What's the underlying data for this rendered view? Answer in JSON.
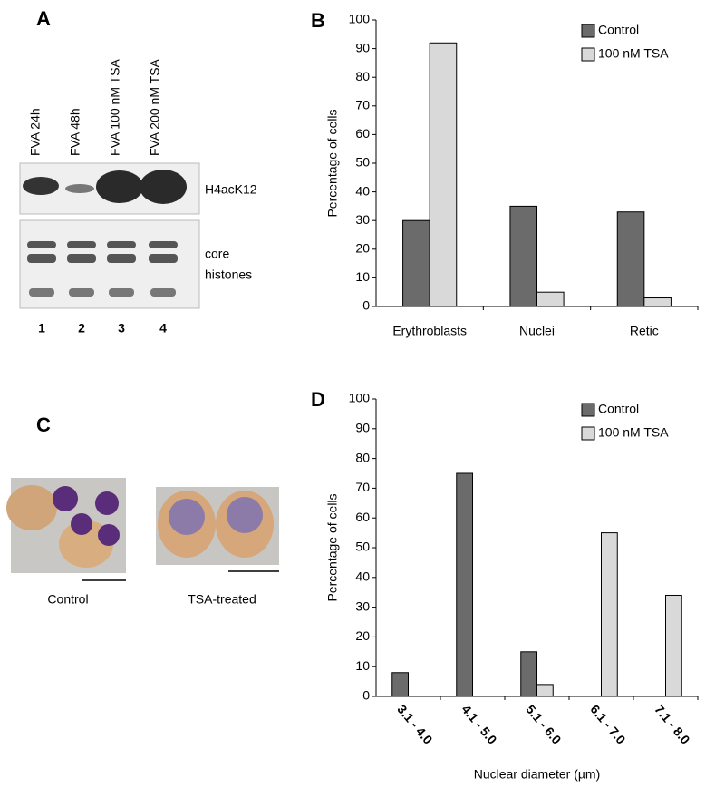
{
  "figure": {
    "panel_a": {
      "letter": "A",
      "lanes": [
        "FVA 24h",
        "FVA 48h",
        "FVA 100 nM TSA",
        "FVA 200 nM TSA"
      ],
      "lane_numbers": [
        "1",
        "2",
        "3",
        "4"
      ],
      "band_labels": [
        "H4acK12",
        "core",
        "histones"
      ]
    },
    "panel_c": {
      "letter": "C",
      "captions": [
        "Control",
        "TSA-treated"
      ]
    }
  },
  "chart_data": [
    {
      "type": "bar",
      "label": "B",
      "ylabel": "Percentage of cells",
      "categories": [
        "Erythroblasts",
        "Nuclei",
        "Retic"
      ],
      "series": [
        {
          "name": "Control",
          "color": "#6b6b6b",
          "values": [
            30,
            35,
            33
          ]
        },
        {
          "name": "100 nM TSA",
          "color": "#d9d9d9",
          "values": [
            92,
            5,
            3
          ]
        }
      ],
      "ylim": [
        0,
        100
      ],
      "yticks": [
        0,
        10,
        20,
        30,
        40,
        50,
        60,
        70,
        80,
        90,
        100
      ],
      "legend": "top-right"
    },
    {
      "type": "bar",
      "label": "D",
      "ylabel": "Percentage of cells",
      "xlabel": "Nuclear diameter (µm)",
      "categories": [
        "3.1 - 4.0",
        "4.1 - 5.0",
        "5.1 - 6.0",
        "6.1 - 7.0",
        "7.1 - 8.0"
      ],
      "series": [
        {
          "name": "Control",
          "color": "#6b6b6b",
          "values": [
            8,
            75,
            15,
            0,
            0
          ]
        },
        {
          "name": "100 nM TSA",
          "color": "#d9d9d9",
          "values": [
            0,
            0,
            4,
            55,
            34
          ]
        }
      ],
      "ylim": [
        0,
        100
      ],
      "yticks": [
        0,
        10,
        20,
        30,
        40,
        50,
        60,
        70,
        80,
        90,
        100
      ],
      "legend": "top-right"
    }
  ]
}
